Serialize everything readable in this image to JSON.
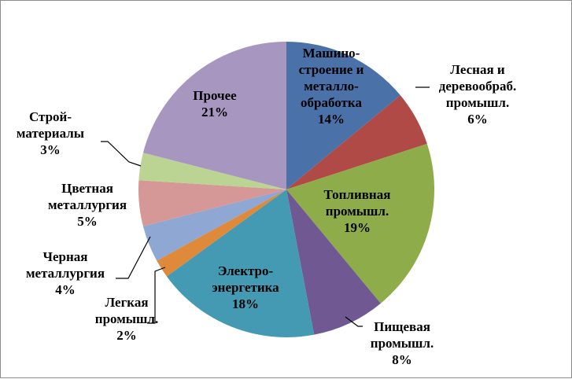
{
  "chart_data": {
    "type": "pie",
    "start_angle_deg": 0,
    "direction": "clockwise",
    "slices": [
      {
        "lines": [
          "Машино-",
          "строение и",
          "металло-",
          "обработка",
          "14%"
        ],
        "value": 14,
        "color": "#4a72a8"
      },
      {
        "lines": [
          "Лесная и",
          "деревообраб.",
          "промышл.",
          "6%"
        ],
        "value": 6,
        "color": "#b04a47"
      },
      {
        "lines": [
          "Топливная",
          "промышл.",
          "19%"
        ],
        "value": 19,
        "color": "#8ead4a"
      },
      {
        "lines": [
          "Пищевая",
          "промышл.",
          "8%"
        ],
        "value": 8,
        "color": "#705893"
      },
      {
        "lines": [
          "Электро-",
          "энергетика",
          "18%"
        ],
        "value": 18,
        "color": "#4499b3"
      },
      {
        "lines": [
          "Легкая",
          "промышл.",
          "2%"
        ],
        "value": 2,
        "color": "#de8a3a"
      },
      {
        "lines": [
          "Черная",
          "металлургия",
          "4%"
        ],
        "value": 4,
        "color": "#8ea7d3"
      },
      {
        "lines": [
          "Цветная",
          "металлургия",
          "5%"
        ],
        "value": 5,
        "color": "#d69896"
      },
      {
        "lines": [
          "Строй-",
          "материалы",
          "3%"
        ],
        "value": 3,
        "color": "#bbd494"
      },
      {
        "lines": [
          "Прочее",
          "21%"
        ],
        "value": 21,
        "color": "#a797c0"
      }
    ]
  }
}
